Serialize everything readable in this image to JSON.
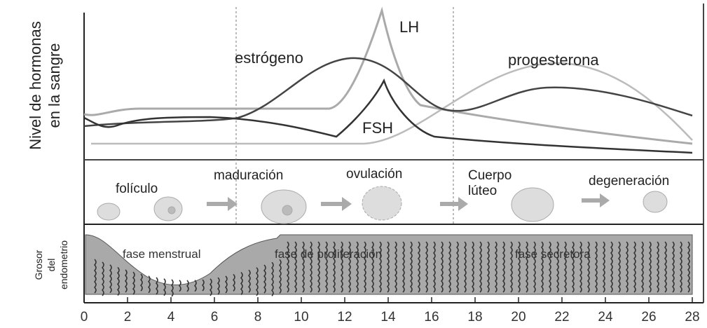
{
  "hormone_panel": {
    "axis_label": [
      "Nivel de hormonas",
      "en la sangre"
    ],
    "curve_labels": {
      "estrogen": "estrógeno",
      "lh": "LH",
      "fsh": "FSH",
      "progesterone": "progesterona"
    }
  },
  "ovary_panel": {
    "stages": [
      "folículo",
      "maduración",
      "ovulación",
      "Cuerpo",
      "lúteo",
      "degeneración"
    ]
  },
  "endometrium_panel": {
    "axis_label": [
      "Grosor",
      "del",
      "endometrio"
    ],
    "phases": [
      "fase menstrual",
      "fase de proliferación",
      "fase secretora"
    ]
  },
  "x_axis": {
    "ticks": [
      0,
      2,
      4,
      6,
      8,
      10,
      12,
      14,
      16,
      18,
      20,
      22,
      24,
      26,
      28
    ]
  }
}
